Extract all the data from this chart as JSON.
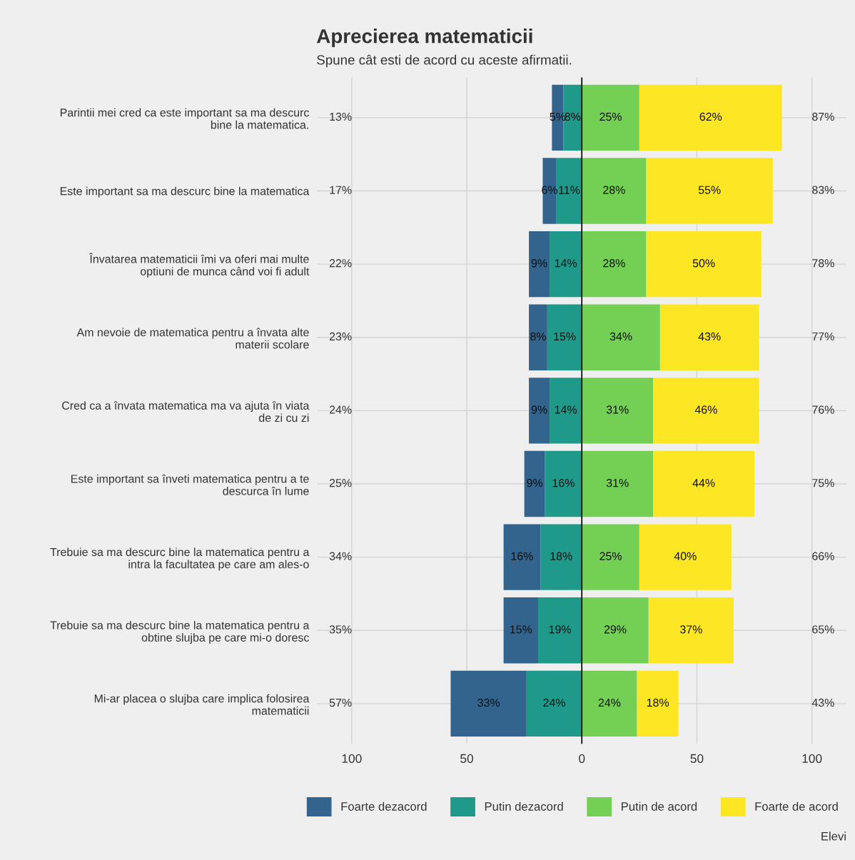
{
  "chart_data": {
    "type": "bar",
    "orientation": "horizontal",
    "stacked": true,
    "title": "Aprecierea matematicii",
    "subtitle": "Spune cât esti de acord cu aceste afirmatii.",
    "categories": [
      "Parintii mei cred ca este important sa ma descurc\nbine la matematica.",
      "Este important sa ma descurc bine la matematica",
      "Învatarea matematicii îmi va oferi mai multe\noptiuni de munca când voi fi adult",
      "Am nevoie de matematica pentru a învata alte\nmaterii scolare",
      "Cred ca a învata matematica ma va ajuta în viata\nde zi cu zi",
      "Este important sa înveti matematica pentru a te\ndescurca în lume",
      "Trebuie sa ma descurc bine la matematica pentru a\nintra la facultatea pe care am ales-o",
      "Trebuie sa ma descurc bine la matematica pentru a\nobtine slujba pe care mi-o doresc",
      "Mi-ar placea o slujba care implica folosirea\nmatematicii"
    ],
    "series": [
      {
        "name": "Foarte dezacord",
        "color": "#32648e",
        "values": [
          5,
          6,
          9,
          8,
          9,
          9,
          16,
          15,
          33
        ],
        "base": [
          -13,
          -17,
          -23,
          -23,
          -23,
          -25,
          -34,
          -34,
          -57
        ],
        "value_labels": [
          "5%",
          "6%",
          "9%",
          "8%",
          "9%",
          "9%",
          "16%",
          "15%",
          "33%"
        ]
      },
      {
        "name": "Putin dezacord",
        "color": "#1f9a8a",
        "values": [
          8,
          11,
          14,
          15,
          14,
          16,
          18,
          19,
          24
        ],
        "base": [
          -8,
          -11,
          -14,
          -15,
          -14,
          -16,
          -18,
          -19,
          -24
        ],
        "value_labels": [
          "8%",
          "11%",
          "14%",
          "15%",
          "14%",
          "16%",
          "18%",
          "19%",
          "24%"
        ]
      },
      {
        "name": "Putin de acord",
        "color": "#74d055",
        "values": [
          25,
          28,
          28,
          34,
          31,
          31,
          25,
          29,
          24
        ],
        "base": [
          0,
          0,
          0,
          0,
          0,
          0,
          0,
          0,
          0
        ],
        "value_labels": [
          "25%",
          "28%",
          "28%",
          "34%",
          "31%",
          "31%",
          "25%",
          "29%",
          "24%"
        ]
      },
      {
        "name": "Foarte de acord",
        "color": "#fde725",
        "values": [
          62,
          55,
          50,
          43,
          46,
          44,
          40,
          37,
          18
        ],
        "base": [
          25,
          28,
          28,
          34,
          31,
          31,
          25,
          29,
          24
        ],
        "value_labels": [
          "62%",
          "55%",
          "50%",
          "43%",
          "46%",
          "44%",
          "40%",
          "37%",
          "18%"
        ]
      }
    ],
    "xlim": [
      -115,
      115
    ],
    "xticks": [
      {
        "value": -100,
        "label": "100"
      },
      {
        "value": -50,
        "label": "50"
      },
      0,
      50,
      100
    ],
    "ref_lines": [
      {
        "axis": "x",
        "value": 0,
        "color": "#000000"
      }
    ],
    "grid": true,
    "legend": "bottom",
    "annotations": [
      "13%",
      "17%",
      "22%",
      "23%",
      "24%",
      "25%",
      "34%",
      "35%",
      "57%",
      "87%",
      "83%",
      "78%",
      "77%",
      "76%",
      "75%",
      "66%",
      "65%",
      "43%",
      "Elevi"
    ]
  }
}
